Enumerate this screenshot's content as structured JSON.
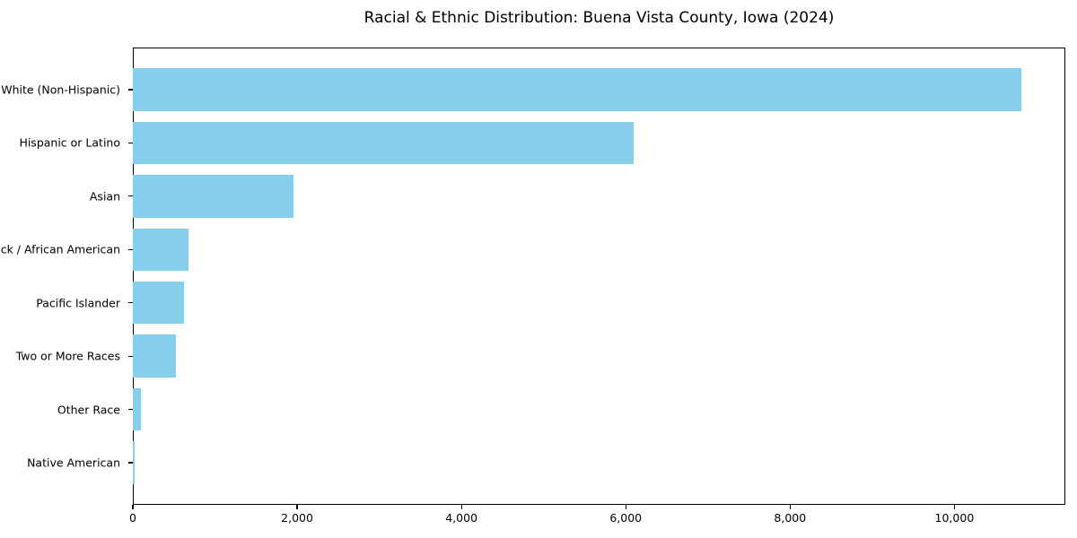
{
  "chart_data": {
    "type": "bar",
    "orientation": "horizontal",
    "title": "Racial & Ethnic Distribution: Buena Vista County, Iowa (2024)",
    "categories": [
      "White (Non-Hispanic)",
      "Hispanic or Latino",
      "Asian",
      "Black / African American",
      "Pacific Islander",
      "Two or More Races",
      "Other Race",
      "Native American"
    ],
    "values": [
      10810,
      6100,
      1960,
      680,
      620,
      520,
      100,
      25
    ],
    "xlabel": "",
    "ylabel": "",
    "xlim": [
      0,
      11350
    ],
    "x_ticks": [
      0,
      2000,
      4000,
      6000,
      8000,
      10000
    ],
    "x_tick_labels": [
      "0",
      "2,000",
      "4,000",
      "6,000",
      "8,000",
      "10,000"
    ],
    "bar_color": "#87CEEB",
    "grid": false,
    "legend": "none",
    "frame": "full-box"
  }
}
